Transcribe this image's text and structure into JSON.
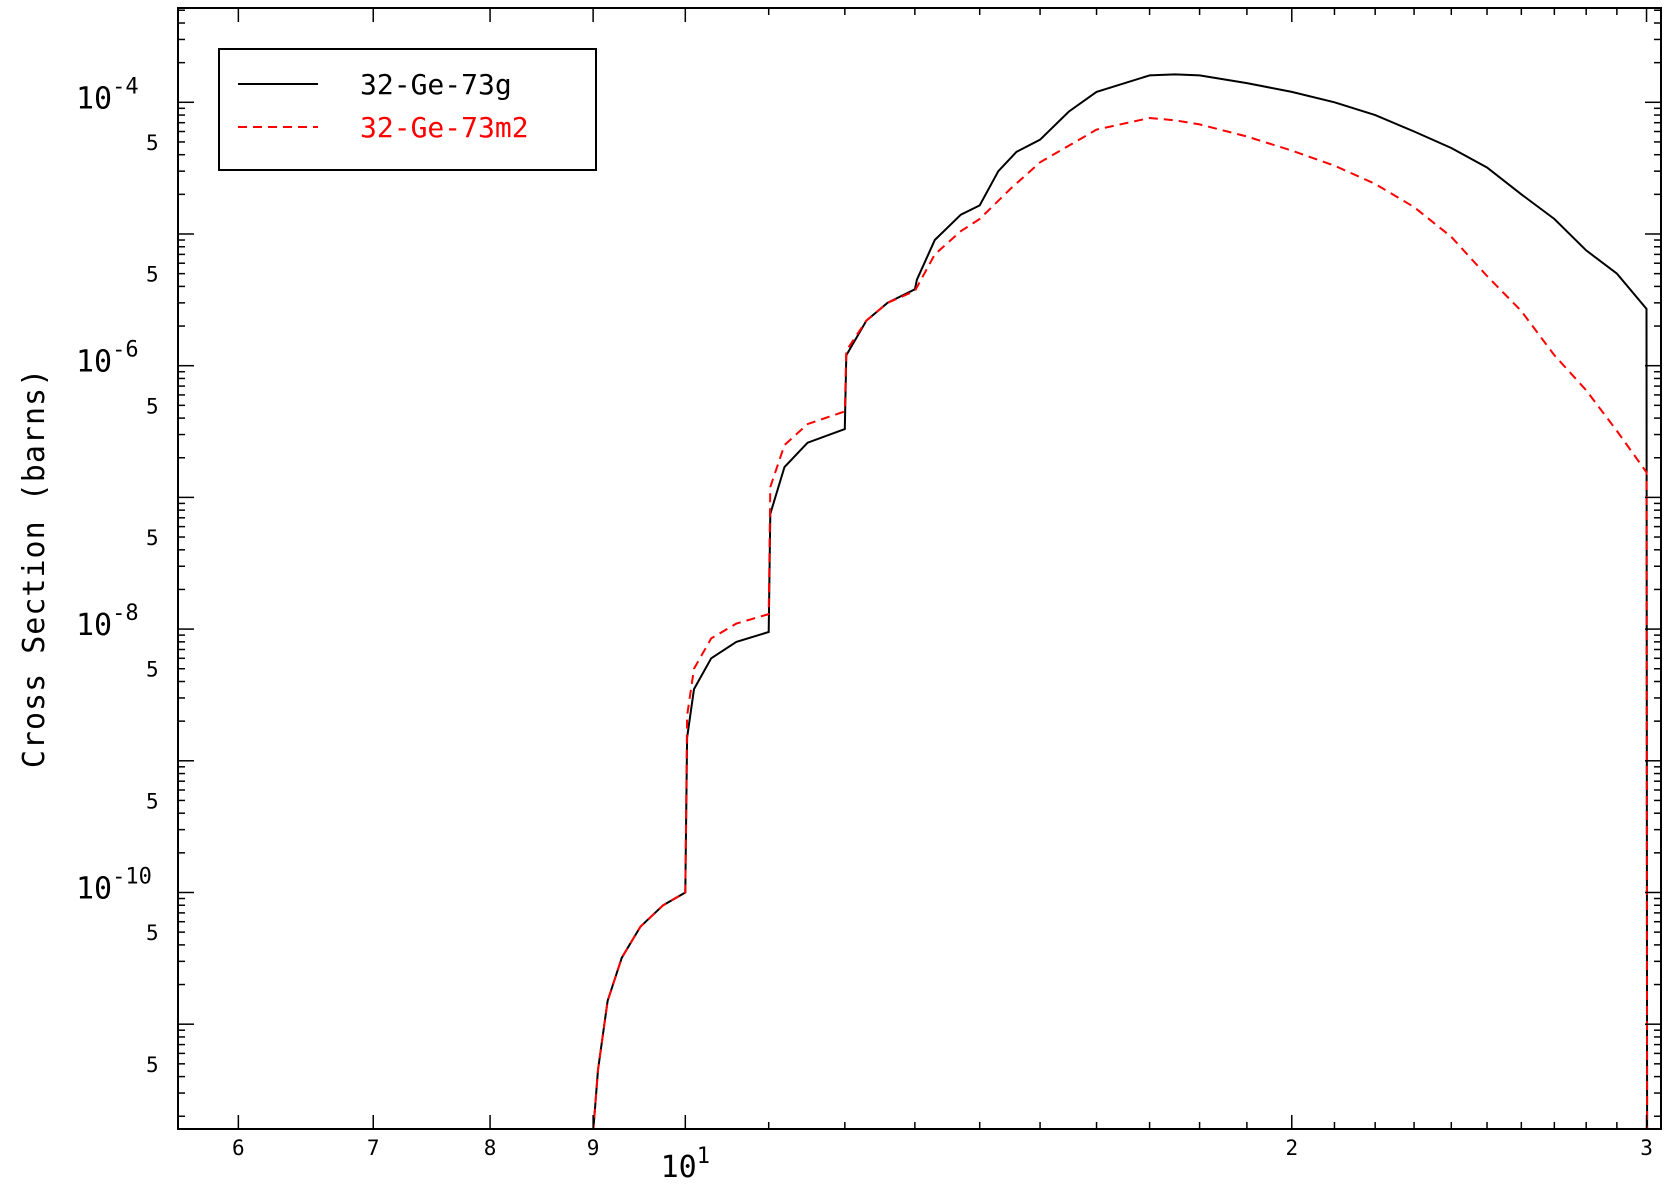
{
  "chart_data": {
    "type": "line",
    "title": "",
    "xlabel": "",
    "ylabel": "Cross Section (barns)",
    "x_scale": "log",
    "y_scale": "log",
    "xlim": [
      5.6,
      30.5
    ],
    "ylim": [
      1.6e-12,
      0.00052
    ],
    "grid": false,
    "legend_position": "top-left",
    "x_tick_labels": [
      {
        "value": 6,
        "base": "6",
        "exp": ""
      },
      {
        "value": 7,
        "base": "7",
        "exp": ""
      },
      {
        "value": 8,
        "base": "8",
        "exp": ""
      },
      {
        "value": 9,
        "base": "9",
        "exp": ""
      },
      {
        "value": 10,
        "base": "10",
        "exp": "1"
      },
      {
        "value": 20,
        "base": "2",
        "exp": ""
      },
      {
        "value": 30,
        "base": "3",
        "exp": ""
      }
    ],
    "y_tick_labels": [
      {
        "value": 0.0001,
        "base": "10",
        "exp": "-4"
      },
      {
        "value": 5e-05,
        "base": "5",
        "exp": ""
      },
      {
        "value": 5e-06,
        "base": "5",
        "exp": ""
      },
      {
        "value": 1e-06,
        "base": "10",
        "exp": "-6"
      },
      {
        "value": 5e-07,
        "base": "5",
        "exp": ""
      },
      {
        "value": 5e-08,
        "base": "5",
        "exp": ""
      },
      {
        "value": 1e-08,
        "base": "10",
        "exp": "-8"
      },
      {
        "value": 5e-09,
        "base": "5",
        "exp": ""
      },
      {
        "value": 5e-10,
        "base": "5",
        "exp": ""
      },
      {
        "value": 1e-10,
        "base": "10",
        "exp": "-10"
      },
      {
        "value": 5e-11,
        "base": "5",
        "exp": ""
      },
      {
        "value": 5e-12,
        "base": "5",
        "exp": ""
      }
    ],
    "series": [
      {
        "name": "32-Ge-73g",
        "color": "#000000",
        "dash": "solid",
        "points": [
          [
            9.0,
            1.5e-12
          ],
          [
            9.05,
            4.5e-12
          ],
          [
            9.15,
            1.5e-11
          ],
          [
            9.3,
            3.2e-11
          ],
          [
            9.5,
            5.5e-11
          ],
          [
            9.75,
            8e-11
          ],
          [
            10.0,
            1e-10
          ],
          [
            10.02,
            1.5e-09
          ],
          [
            10.1,
            3.5e-09
          ],
          [
            10.3,
            6e-09
          ],
          [
            10.6,
            8e-09
          ],
          [
            11.0,
            9.5e-09
          ],
          [
            11.02,
            7.5e-08
          ],
          [
            11.2,
            1.7e-07
          ],
          [
            11.5,
            2.6e-07
          ],
          [
            12.0,
            3.3e-07
          ],
          [
            12.02,
            1.2e-06
          ],
          [
            12.3,
            2.2e-06
          ],
          [
            12.6,
            3e-06
          ],
          [
            13.0,
            3.8e-06
          ],
          [
            13.03,
            4.5e-06
          ],
          [
            13.3,
            9e-06
          ],
          [
            13.7,
            1.4e-05
          ],
          [
            14.0,
            1.65e-05
          ],
          [
            14.3,
            3e-05
          ],
          [
            14.6,
            4.2e-05
          ],
          [
            15.0,
            5.2e-05
          ],
          [
            15.5,
            8.5e-05
          ],
          [
            16.0,
            0.00012
          ],
          [
            17.0,
            0.00016
          ],
          [
            17.5,
            0.000163
          ],
          [
            18.0,
            0.00016
          ],
          [
            19.0,
            0.00014
          ],
          [
            20.0,
            0.00012
          ],
          [
            21.0,
            0.0001
          ],
          [
            22.0,
            8e-05
          ],
          [
            23.0,
            6e-05
          ],
          [
            24.0,
            4.5e-05
          ],
          [
            25.0,
            3.2e-05
          ],
          [
            26.0,
            2e-05
          ],
          [
            27.0,
            1.3e-05
          ],
          [
            28.0,
            7.5e-06
          ],
          [
            29.0,
            5e-06
          ],
          [
            30.0,
            2.7e-06
          ],
          [
            30.02,
            1.5e-12
          ]
        ]
      },
      {
        "name": "32-Ge-73m2",
        "color": "#ff0000",
        "dash": "dashed",
        "points": [
          [
            9.0,
            1.5e-12
          ],
          [
            9.05,
            4.5e-12
          ],
          [
            9.15,
            1.5e-11
          ],
          [
            9.3,
            3.2e-11
          ],
          [
            9.5,
            5.5e-11
          ],
          [
            9.75,
            8e-11
          ],
          [
            10.0,
            1e-10
          ],
          [
            10.02,
            2.2e-09
          ],
          [
            10.1,
            5e-09
          ],
          [
            10.3,
            8.5e-09
          ],
          [
            10.6,
            1.1e-08
          ],
          [
            11.0,
            1.3e-08
          ],
          [
            11.02,
            1.2e-07
          ],
          [
            11.2,
            2.5e-07
          ],
          [
            11.5,
            3.6e-07
          ],
          [
            12.0,
            4.5e-07
          ],
          [
            12.02,
            1.3e-06
          ],
          [
            12.3,
            2.2e-06
          ],
          [
            12.6,
            3e-06
          ],
          [
            13.0,
            3.7e-06
          ],
          [
            13.3,
            7e-06
          ],
          [
            13.7,
            1.05e-05
          ],
          [
            14.0,
            1.3e-05
          ],
          [
            14.5,
            2.2e-05
          ],
          [
            15.0,
            3.5e-05
          ],
          [
            16.0,
            6.2e-05
          ],
          [
            17.0,
            7.6e-05
          ],
          [
            17.5,
            7.3e-05
          ],
          [
            18.0,
            6.8e-05
          ],
          [
            19.0,
            5.5e-05
          ],
          [
            20.0,
            4.3e-05
          ],
          [
            21.0,
            3.3e-05
          ],
          [
            22.0,
            2.4e-05
          ],
          [
            23.0,
            1.6e-05
          ],
          [
            24.0,
            9.5e-06
          ],
          [
            25.0,
            4.8e-06
          ],
          [
            26.0,
            2.6e-06
          ],
          [
            27.0,
            1.2e-06
          ],
          [
            28.0,
            6.5e-07
          ],
          [
            29.0,
            3.2e-07
          ],
          [
            30.0,
            1.55e-07
          ],
          [
            30.02,
            1.5e-12
          ]
        ]
      }
    ]
  }
}
